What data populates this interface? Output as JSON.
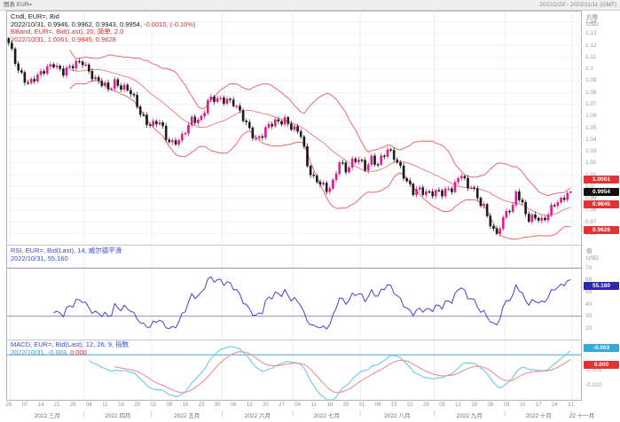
{
  "window": {
    "title_left": "图表 EUR=",
    "title_right": "2022/2/28 - 2022/11/11 (GMT)"
  },
  "colors": {
    "up": "#dd1c8a",
    "down": "#1a1a1a",
    "bband": "#e96a6a",
    "rsi": "#4343cc",
    "rsi_ref": "#9090d2",
    "macd": "#6cc8ec",
    "signal": "#ef9090",
    "zero": "#6ab4e8",
    "badge_red": "#e23333",
    "badge_black": "#111111",
    "badge_blue": "#2a2ab0",
    "badge_cyan": "#35a8d8",
    "grid": "#f2f2f2",
    "vgrid": "#ececec"
  },
  "main_panel": {
    "legend1": "Cndl, EUR=, Bid",
    "legend2": "2022/10/31, 0.9946, 0.9962, 0.9943, 0.9954, ",
    "legend2_change": "-0.0010, (-0.10%)",
    "legend3": "BBand, EUR=, Bid(Last),  20, 简单, 2.0",
    "legend4": "2022/10/31, 1.0061, 0.9845, 0.9628",
    "axis_title": "价格",
    "axis_unit": "USD",
    "badges": [
      {
        "value": 1.0061,
        "label": "1.0061",
        "bg": "#e23333"
      },
      {
        "value": 0.9954,
        "label": "0.9954",
        "bg": "#111111"
      },
      {
        "value": 0.9845,
        "label": "0.9845",
        "bg": "#e23333"
      },
      {
        "value": 0.9628,
        "label": "0.9628",
        "bg": "#e23333"
      }
    ]
  },
  "rsi_panel": {
    "legend1": "RSI, EUR=, Bid(Last), 14, 威尔德平滑",
    "legend2": "2022/10/31, 55.160",
    "axis_title": "值",
    "axis_unit": "USD",
    "badge": {
      "value": 55.16,
      "label": "55.160",
      "bg": "#2a2ab0"
    }
  },
  "macd_panel": {
    "legend1": "MACD, EUR=, Bid(Last), 12, 26, 9, 指数",
    "legend2": "2022/10/31, -0.003, ",
    "legend2b": "0.000",
    "badge_macd": {
      "label": "-0.003",
      "bg": "#35a8d8"
    },
    "badge_signal": {
      "label": "0.000",
      "bg": "#e23333"
    }
  },
  "x_axis": {
    "day_step": 5,
    "day_labels": [
      "28",
      "07",
      "14",
      "21",
      "28",
      "04",
      "11",
      "18",
      "25",
      "02",
      "09",
      "16",
      "23",
      "30",
      "06",
      "13",
      "20",
      "27",
      "04",
      "11",
      "18",
      "25",
      "01",
      "08",
      "15",
      "22",
      "29",
      "05",
      "12",
      "19",
      "26",
      "03",
      "10",
      "17",
      "24",
      "31"
    ],
    "months": [
      {
        "label": "2022 三月",
        "a": 1,
        "b": 24
      },
      {
        "label": "2022 四月",
        "a": 24,
        "b": 45
      },
      {
        "label": "2022 五月",
        "a": 45,
        "b": 67
      },
      {
        "label": "2022 六月",
        "a": 67,
        "b": 89
      },
      {
        "label": "2022 七月",
        "a": 89,
        "b": 110
      },
      {
        "label": "2022 八月",
        "a": 110,
        "b": 133
      },
      {
        "label": "2022 九月",
        "a": 133,
        "b": 155
      },
      {
        "label": "2022 十月",
        "a": 155,
        "b": 176
      },
      {
        "label": "22 十一月",
        "a": 176,
        "b": 182
      }
    ]
  },
  "chart_data": [
    {
      "type": "candlestick",
      "title": "Cndl, EUR=, Bid",
      "symbol": "EUR=",
      "date_range": "2022/2/28 - 2022/11/11 (GMT)",
      "crosshair_date": "2022/10/31",
      "last_candle": [
        0.9946,
        0.9962,
        0.9943,
        0.9954
      ],
      "change": -0.001,
      "change_pct": "-0.10%",
      "overlay": {
        "name": "BBand",
        "period": 20,
        "method": "简单",
        "stdev": 2.0,
        "upper": 1.0061,
        "middle": 0.9845,
        "lower": 0.9628
      },
      "ylabel": "价格 USD",
      "ylim": [
        0.952,
        1.148
      ],
      "yticks": [
        1.14,
        1.13,
        1.12,
        1.11,
        1.1,
        1.09,
        1.08,
        1.07,
        1.06,
        1.05,
        1.04,
        1.03,
        1.02,
        1.01,
        1.0,
        0.99,
        0.98,
        0.97,
        0.96
      ],
      "n_candles": 176,
      "wiggle": [
        0.0028,
        0.0016
      ],
      "close_anchors": [
        [
          0,
          1.122
        ],
        [
          3,
          1.097
        ],
        [
          6,
          1.089
        ],
        [
          8,
          1.093
        ],
        [
          10,
          1.095
        ],
        [
          13,
          1.102
        ],
        [
          14,
          1.105
        ],
        [
          17,
          1.098
        ],
        [
          19,
          1.1
        ],
        [
          23,
          1.107
        ],
        [
          25,
          1.099
        ],
        [
          27,
          1.09
        ],
        [
          31,
          1.083
        ],
        [
          33,
          1.09
        ],
        [
          35,
          1.085
        ],
        [
          38,
          1.079
        ],
        [
          41,
          1.064
        ],
        [
          43,
          1.055
        ],
        [
          45,
          1.052
        ],
        [
          47,
          1.054
        ],
        [
          49,
          1.042
        ],
        [
          51,
          1.038
        ],
        [
          54,
          1.041
        ],
        [
          57,
          1.056
        ],
        [
          60,
          1.059
        ],
        [
          62,
          1.073
        ],
        [
          66,
          1.073
        ],
        [
          68,
          1.075
        ],
        [
          70,
          1.072
        ],
        [
          72,
          1.062
        ],
        [
          74,
          1.052
        ],
        [
          77,
          1.041
        ],
        [
          79,
          1.045
        ],
        [
          81,
          1.051
        ],
        [
          84,
          1.055
        ],
        [
          86,
          1.058
        ],
        [
          89,
          1.048
        ],
        [
          91,
          1.043
        ],
        [
          93,
          1.018
        ],
        [
          95,
          1.008
        ],
        [
          97,
          1.004
        ],
        [
          99,
          0.995
        ],
        [
          101,
          1.002
        ],
        [
          103,
          1.023
        ],
        [
          105,
          1.015
        ],
        [
          107,
          1.02
        ],
        [
          109,
          1.022
        ],
        [
          111,
          1.016
        ],
        [
          113,
          1.025
        ],
        [
          115,
          1.019
        ],
        [
          118,
          1.03
        ],
        [
          120,
          1.026
        ],
        [
          122,
          1.017
        ],
        [
          124,
          1.004
        ],
        [
          126,
          0.994
        ],
        [
          128,
          0.997
        ],
        [
          130,
          0.996
        ],
        [
          133,
          0.995
        ],
        [
          135,
          0.993
        ],
        [
          138,
          0.999
        ],
        [
          141,
          1.012
        ],
        [
          143,
          0.997
        ],
        [
          144,
          1.0
        ],
        [
          146,
          0.99
        ],
        [
          148,
          0.984
        ],
        [
          150,
          0.969
        ],
        [
          151,
          0.961
        ],
        [
          152,
          0.959
        ],
        [
          154,
          0.97
        ],
        [
          155,
          0.98
        ],
        [
          157,
          0.983
        ],
        [
          158,
          0.998
        ],
        [
          160,
          0.983
        ],
        [
          162,
          0.97
        ],
        [
          164,
          0.975
        ],
        [
          166,
          0.972
        ],
        [
          168,
          0.977
        ],
        [
          170,
          0.984
        ],
        [
          172,
          0.987
        ],
        [
          174,
          0.996
        ],
        [
          175,
          0.9954
        ]
      ]
    },
    {
      "type": "line",
      "name": "RSI",
      "params": "14, 威尔德平滑",
      "derived_from": "closes of series 0, RSI(14) Wilder smoothing",
      "last_value": 55.16,
      "ref_lines": [
        70,
        30
      ],
      "ylim": [
        12,
        88
      ],
      "yticks": [
        70,
        60,
        50,
        40,
        30,
        20
      ]
    },
    {
      "type": "line",
      "name": "MACD",
      "params": "12, 26, 9, 指数",
      "derived_from": "closes of series 0, MACD(12,26) with EMA(9) signal",
      "last_macd": -0.003,
      "last_signal": 0.0,
      "zero_line": 0,
      "ylim": [
        -0.015,
        0.0045
      ],
      "yticks": [
        -0.005,
        -0.01
      ]
    }
  ]
}
